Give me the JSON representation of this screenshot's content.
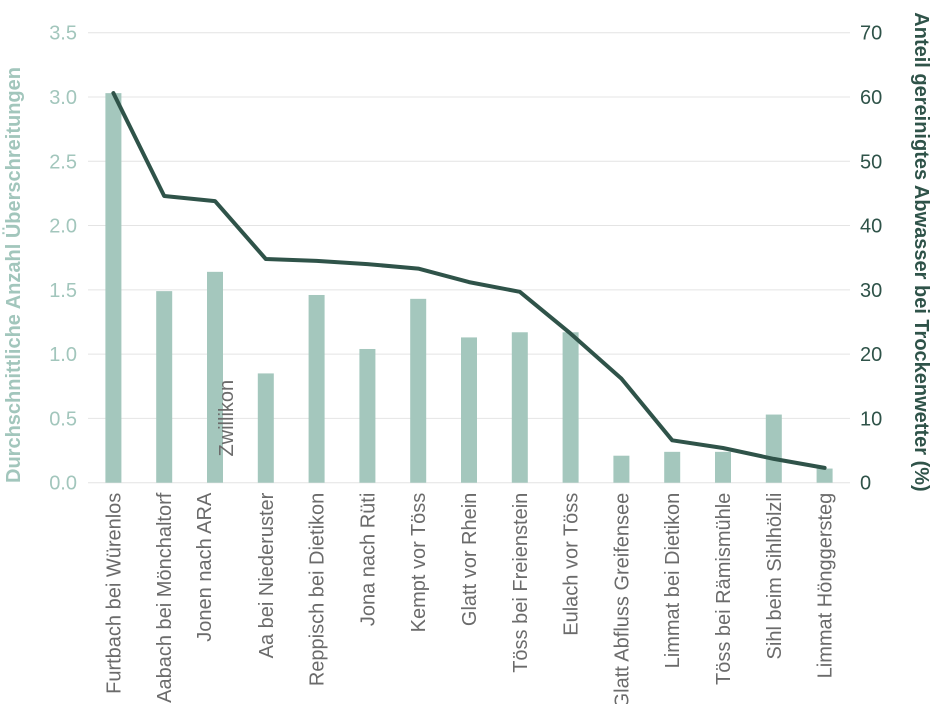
{
  "chart_data": {
    "type": "bar",
    "subtype": "combo-bar-line-dual-axis",
    "title": "",
    "xlabel": "",
    "ylabel_left": "Durchschnittliche Anzahl Überschreitungen",
    "ylabel_right": "Anteil gereinigtes Abwasser bei Trockenwetter (%)",
    "categories": [
      "Furtbach bei Würenlos",
      "Aabach bei Mönchaltorf",
      "Jonen nach ARA\nZwillikon",
      "Aa bei Niederuster",
      "Reppisch bei Dietikon",
      "Jona nach Rüti",
      "Kempt vor Töss",
      "Glatt vor Rhein",
      "Töss bei Freienstein",
      "Eulach vor Töss",
      "Glatt Abfluss Greifensee",
      "Limmat bei Dietikon",
      "Töss bei Rämismühle",
      "Sihl beim Sihlhölzli",
      "Limmat Hönggersteg"
    ],
    "series": [
      {
        "name": "Durchschnittliche Anzahl Überschreitungen",
        "type": "bar",
        "axis": "left",
        "values": [
          3.03,
          1.49,
          1.64,
          0.85,
          1.46,
          1.04,
          1.43,
          1.13,
          1.17,
          1.17,
          0.21,
          0.24,
          0.24,
          0.53,
          0.11
        ]
      },
      {
        "name": "Anteil gereinigtes Abwasser bei Trockenwetter (%)",
        "type": "line",
        "axis": "right",
        "values": [
          60.6,
          44.6,
          43.8,
          34.8,
          34.5,
          34.0,
          33.3,
          31.2,
          29.7,
          23.2,
          16.2,
          6.6,
          5.4,
          3.7,
          2.3
        ]
      }
    ],
    "yaxis_left": {
      "min": 0,
      "max": 3.5,
      "tick_step": 0.5,
      "tick_labels": [
        "0.0",
        "0.5",
        "1.0",
        "1.5",
        "2.0",
        "2.5",
        "3.0",
        "3.5"
      ]
    },
    "yaxis_right": {
      "min": 0,
      "max": 70,
      "tick_step": 10,
      "tick_labels": [
        "0",
        "10",
        "20",
        "30",
        "40",
        "50",
        "60",
        "70"
      ]
    },
    "grid": true,
    "legend": "none",
    "colors": {
      "bar": "#a4c7bd",
      "line": "#2f5349",
      "left_axis_text": "#a2c6bc",
      "right_axis_text": "#2f5349",
      "x_label_text": "#6b6b6b",
      "grid_line": "#e4e4e4",
      "background": "#ffffff"
    }
  }
}
